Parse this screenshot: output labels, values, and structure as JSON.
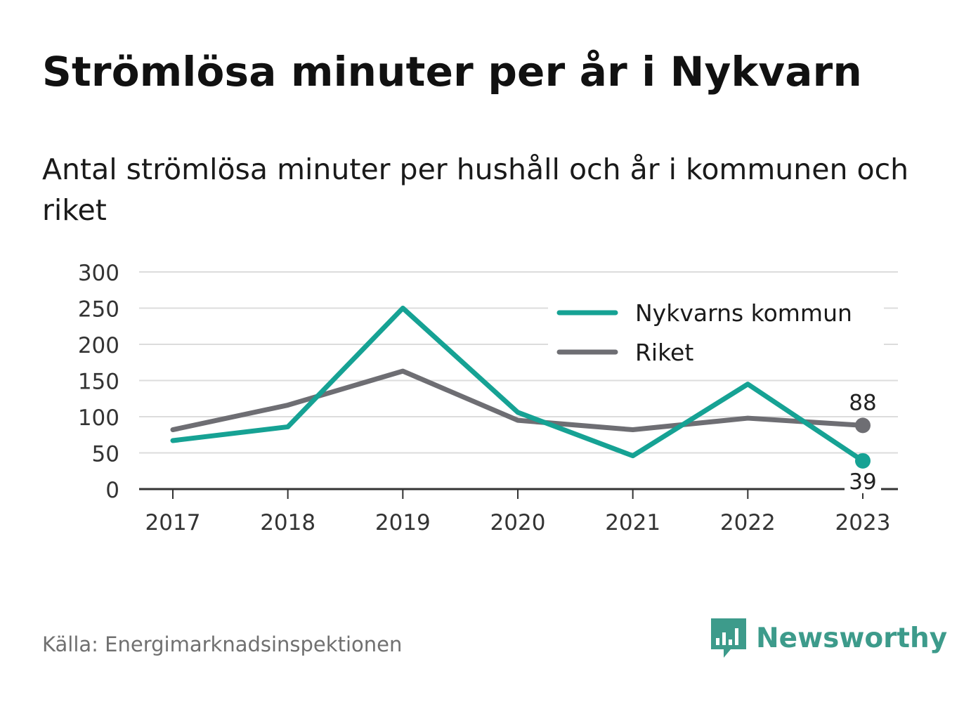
{
  "title": "Strömlösa minuter per år i Nykvarn",
  "subtitle": "Antal strömlösa minuter per hushåll och år i kommunen och riket",
  "source": "Källa: Energimarknadsinspektionen",
  "brand": {
    "name": "Newsworthy",
    "icon": "newsworthy-logo-icon",
    "color": "#3d9b8b"
  },
  "chart_data": {
    "type": "line",
    "x": [
      "2017",
      "2018",
      "2019",
      "2020",
      "2021",
      "2022",
      "2023"
    ],
    "ylim": [
      0,
      300
    ],
    "yticks": [
      "0",
      "50",
      "100",
      "150",
      "200",
      "250",
      "300"
    ],
    "grid": true,
    "legend": "top-right",
    "series": [
      {
        "name": "Nykvarns kommun",
        "color": "#16a294",
        "values": [
          67,
          86,
          250,
          106,
          46,
          145,
          39
        ],
        "end_label": "39"
      },
      {
        "name": "Riket",
        "color": "#6e6e73",
        "values": [
          82,
          116,
          163,
          95,
          82,
          98,
          88
        ],
        "end_label": "88"
      }
    ]
  }
}
